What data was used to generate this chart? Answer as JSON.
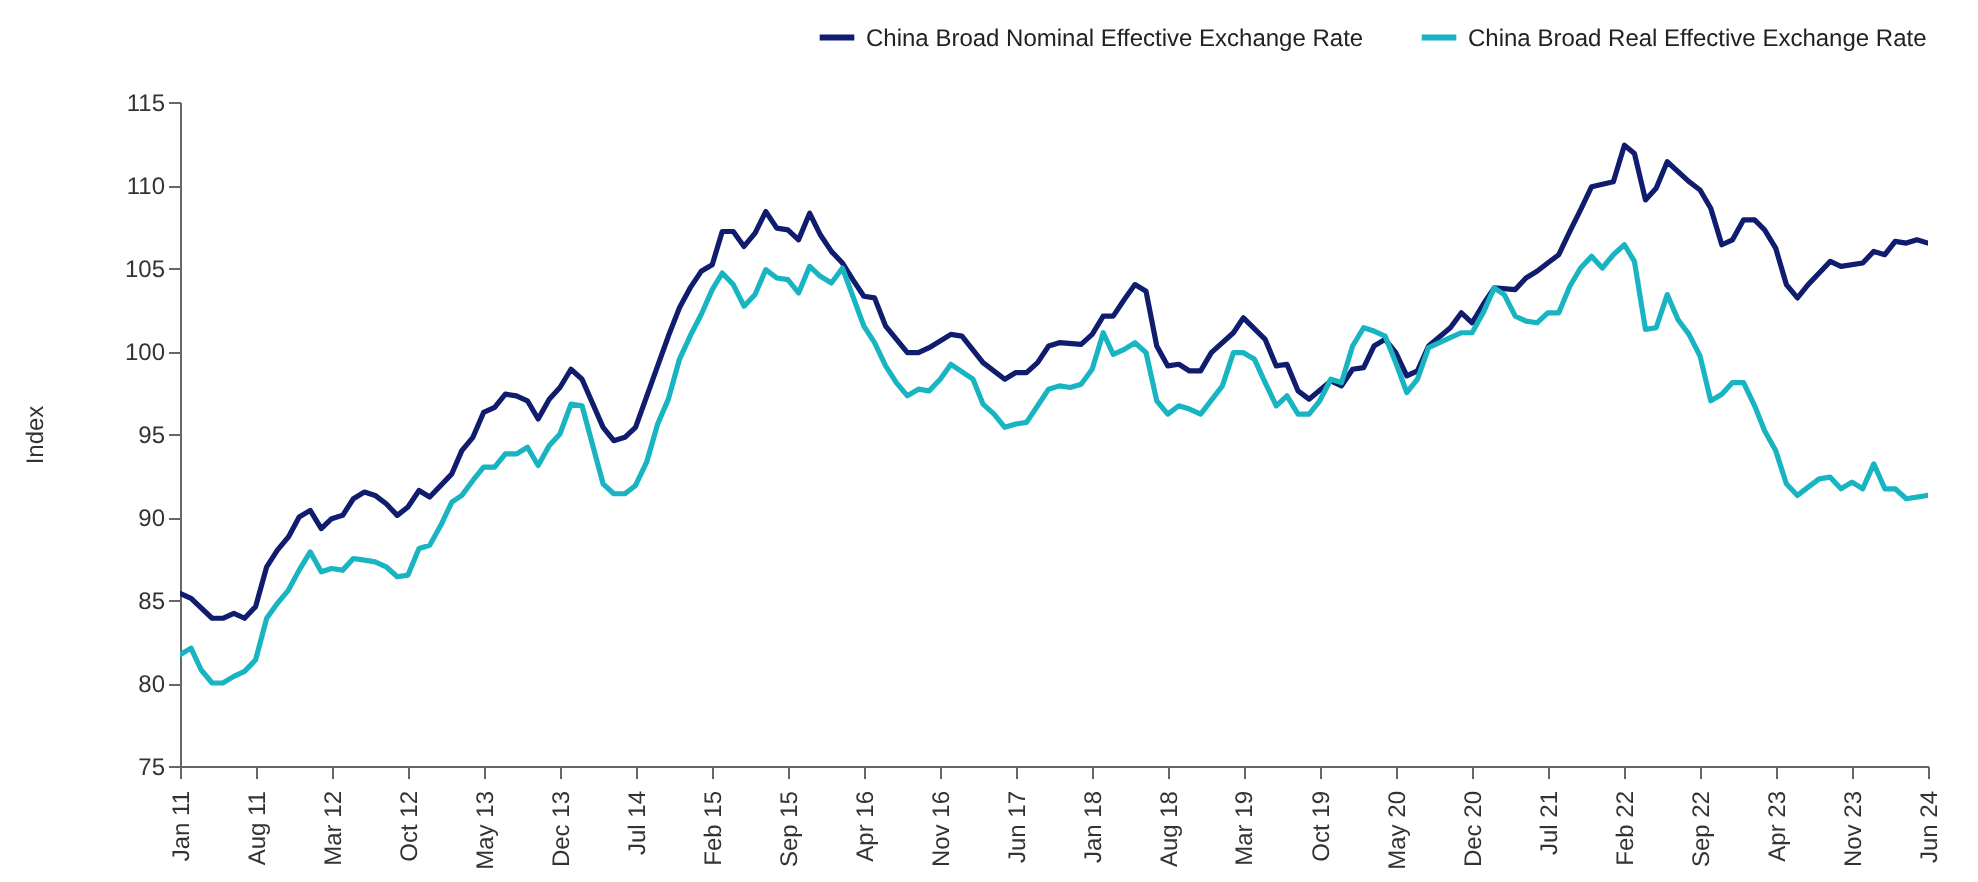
{
  "chart_data": {
    "type": "line",
    "ylabel": "Index",
    "ylim": [
      75,
      115
    ],
    "yticks": [
      75,
      80,
      85,
      90,
      95,
      100,
      105,
      110,
      115
    ],
    "xlim": [
      "2011-01",
      "2024-06"
    ],
    "xticks": [
      {
        "value": "2011-01",
        "label": "Jan 11"
      },
      {
        "value": "2011-08",
        "label": "Aug 11"
      },
      {
        "value": "2012-03",
        "label": "Mar 12"
      },
      {
        "value": "2012-10",
        "label": "Oct 12"
      },
      {
        "value": "2013-05",
        "label": "May 13"
      },
      {
        "value": "2013-12",
        "label": "Dec 13"
      },
      {
        "value": "2014-07",
        "label": "Jul 14"
      },
      {
        "value": "2015-02",
        "label": "Feb 15"
      },
      {
        "value": "2015-09",
        "label": "Sep 15"
      },
      {
        "value": "2016-04",
        "label": "Apr 16"
      },
      {
        "value": "2016-11",
        "label": "Nov 16"
      },
      {
        "value": "2017-06",
        "label": "Jun 17"
      },
      {
        "value": "2018-01",
        "label": "Jan 18"
      },
      {
        "value": "2018-08",
        "label": "Aug 18"
      },
      {
        "value": "2019-03",
        "label": "Mar 19"
      },
      {
        "value": "2019-10",
        "label": "Oct 19"
      },
      {
        "value": "2020-05",
        "label": "May 20"
      },
      {
        "value": "2020-12",
        "label": "Dec 20"
      },
      {
        "value": "2021-07",
        "label": "Jul 21"
      },
      {
        "value": "2022-02",
        "label": "Feb 22"
      },
      {
        "value": "2022-09",
        "label": "Sep 22"
      },
      {
        "value": "2023-04",
        "label": "Apr 23"
      },
      {
        "value": "2023-11",
        "label": "Nov 23"
      },
      {
        "value": "2024-06",
        "label": "Jun 24"
      }
    ],
    "grid": false,
    "legend": "top right",
    "marker": "none",
    "line_style": "solid",
    "series": [
      {
        "name": "China Broad Nominal Effective Exchange Rate",
        "color": "#101c6e",
        "x": [
          "2011-01",
          "2011-02",
          "2011-04",
          "2011-05",
          "2011-06",
          "2011-07",
          "2011-08",
          "2011-09",
          "2011-10",
          "2011-11",
          "2011-12",
          "2012-01",
          "2012-02",
          "2012-03",
          "2012-04",
          "2012-05",
          "2012-06",
          "2012-07",
          "2012-08",
          "2012-09",
          "2012-10",
          "2012-11",
          "2012-12",
          "2013-02",
          "2013-03",
          "2013-04",
          "2013-05",
          "2013-06",
          "2013-07",
          "2013-08",
          "2013-09",
          "2013-10",
          "2013-11",
          "2013-12",
          "2014-01",
          "2014-02",
          "2014-04",
          "2014-05",
          "2014-06",
          "2014-07",
          "2014-09",
          "2014-10",
          "2014-11",
          "2014-12",
          "2015-01",
          "2015-02",
          "2015-03",
          "2015-04",
          "2015-05",
          "2015-06",
          "2015-07",
          "2015-08",
          "2015-09",
          "2015-10",
          "2015-11",
          "2015-12",
          "2016-01",
          "2016-02",
          "2016-03",
          "2016-04",
          "2016-05",
          "2016-06",
          "2016-08",
          "2016-09",
          "2016-10",
          "2016-12",
          "2017-01",
          "2017-03",
          "2017-05",
          "2017-06",
          "2017-07",
          "2017-08",
          "2017-09",
          "2017-10",
          "2017-12",
          "2018-01",
          "2018-02",
          "2018-03",
          "2018-04",
          "2018-05",
          "2018-06",
          "2018-07",
          "2018-08",
          "2018-09",
          "2018-10",
          "2018-11",
          "2018-12",
          "2019-02",
          "2019-03",
          "2019-05",
          "2019-06",
          "2019-07",
          "2019-08",
          "2019-09",
          "2019-11",
          "2019-12",
          "2020-01",
          "2020-02",
          "2020-03",
          "2020-04",
          "2020-05",
          "2020-06",
          "2020-07",
          "2020-08",
          "2020-10",
          "2020-11",
          "2020-12",
          "2021-01",
          "2021-02",
          "2021-04",
          "2021-05",
          "2021-06",
          "2021-07",
          "2021-08",
          "2021-09",
          "2021-10",
          "2021-11",
          "2022-01",
          "2022-02",
          "2022-03",
          "2022-04",
          "2022-05",
          "2022-06",
          "2022-08",
          "2022-09",
          "2022-10",
          "2022-11",
          "2022-12",
          "2023-01",
          "2023-02",
          "2023-03",
          "2023-04",
          "2023-05",
          "2023-06",
          "2023-07",
          "2023-08",
          "2023-09",
          "2023-10",
          "2023-12",
          "2024-01",
          "2024-02",
          "2024-03",
          "2024-04",
          "2024-05",
          "2024-06"
        ],
        "values": [
          85.4,
          85.1,
          83.9,
          83.9,
          84.2,
          83.9,
          84.6,
          87.0,
          88.0,
          88.8,
          90.0,
          90.4,
          89.3,
          89.9,
          90.1,
          91.1,
          91.5,
          91.3,
          90.8,
          90.1,
          90.6,
          91.6,
          91.2,
          92.6,
          94.0,
          94.8,
          96.3,
          96.6,
          97.4,
          97.3,
          97.0,
          95.9,
          97.1,
          97.8,
          98.9,
          98.3,
          95.4,
          94.6,
          94.8,
          95.4,
          99.1,
          100.9,
          102.6,
          103.8,
          104.8,
          105.2,
          107.2,
          107.2,
          106.3,
          107.1,
          108.4,
          107.4,
          107.3,
          106.7,
          108.3,
          107.0,
          106.0,
          105.3,
          104.3,
          103.3,
          103.2,
          101.5,
          99.9,
          99.9,
          100.2,
          101.0,
          100.9,
          99.3,
          98.3,
          98.7,
          98.7,
          99.3,
          100.3,
          100.5,
          100.4,
          101.0,
          102.1,
          102.1,
          103.1,
          104.0,
          103.6,
          100.3,
          99.1,
          99.2,
          98.8,
          98.8,
          99.9,
          101.1,
          102.0,
          100.7,
          99.1,
          99.2,
          97.6,
          97.1,
          98.2,
          97.9,
          98.9,
          99.0,
          100.3,
          100.7,
          99.9,
          98.5,
          98.8,
          100.3,
          101.4,
          102.3,
          101.7,
          102.8,
          103.8,
          103.7,
          104.4,
          104.8,
          105.3,
          105.8,
          107.2,
          108.5,
          109.9,
          110.2,
          112.4,
          111.9,
          109.1,
          109.8,
          111.4,
          110.2,
          109.7,
          108.6,
          106.4,
          106.7,
          107.9,
          107.9,
          107.3,
          106.2,
          104.0,
          103.2,
          104.0,
          104.7,
          105.4,
          105.1,
          105.3,
          106.0,
          105.8,
          106.6,
          106.5,
          106.7,
          106.5
        ]
      },
      {
        "name": "China Broad Real Effective Exchange Rate",
        "color": "#19b4c2",
        "x": [
          "2011-01",
          "2011-02",
          "2011-03",
          "2011-04",
          "2011-05",
          "2011-06",
          "2011-07",
          "2011-08",
          "2011-09",
          "2011-10",
          "2011-11",
          "2011-12",
          "2012-01",
          "2012-02",
          "2012-03",
          "2012-04",
          "2012-05",
          "2012-06",
          "2012-07",
          "2012-08",
          "2012-09",
          "2012-10",
          "2012-11",
          "2012-12",
          "2013-01",
          "2013-02",
          "2013-03",
          "2013-04",
          "2013-05",
          "2013-06",
          "2013-07",
          "2013-08",
          "2013-09",
          "2013-10",
          "2013-11",
          "2013-12",
          "2014-01",
          "2014-02",
          "2014-04",
          "2014-05",
          "2014-06",
          "2014-07",
          "2014-08",
          "2014-09",
          "2014-10",
          "2014-11",
          "2014-12",
          "2015-01",
          "2015-02",
          "2015-03",
          "2015-04",
          "2015-05",
          "2015-06",
          "2015-07",
          "2015-08",
          "2015-09",
          "2015-10",
          "2015-11",
          "2015-12",
          "2016-01",
          "2016-02",
          "2016-03",
          "2016-04",
          "2016-05",
          "2016-06",
          "2016-07",
          "2016-08",
          "2016-09",
          "2016-10",
          "2016-11",
          "2016-12",
          "2017-02",
          "2017-03",
          "2017-04",
          "2017-05",
          "2017-06",
          "2017-07",
          "2017-08",
          "2017-09",
          "2017-10",
          "2017-11",
          "2017-12",
          "2018-01",
          "2018-02",
          "2018-03",
          "2018-04",
          "2018-05",
          "2018-06",
          "2018-07",
          "2018-08",
          "2018-09",
          "2018-10",
          "2018-11",
          "2019-01",
          "2019-02",
          "2019-03",
          "2019-04",
          "2019-05",
          "2019-06",
          "2019-07",
          "2019-08",
          "2019-09",
          "2019-10",
          "2019-11",
          "2019-12",
          "2020-01",
          "2020-02",
          "2020-03",
          "2020-04",
          "2020-05",
          "2020-06",
          "2020-07",
          "2020-08",
          "2020-10",
          "2020-11",
          "2020-12",
          "2021-01",
          "2021-02",
          "2021-03",
          "2021-04",
          "2021-05",
          "2021-06",
          "2021-07",
          "2021-08",
          "2021-09",
          "2021-10",
          "2021-11",
          "2021-12",
          "2022-01",
          "2022-02",
          "2022-03",
          "2022-04",
          "2022-05",
          "2022-06",
          "2022-07",
          "2022-08",
          "2022-09",
          "2022-10",
          "2022-11",
          "2022-12",
          "2023-01",
          "2023-02",
          "2023-03",
          "2023-04",
          "2023-05",
          "2023-06",
          "2023-07",
          "2023-08",
          "2023-09",
          "2023-10",
          "2023-11",
          "2023-12",
          "2024-01",
          "2024-02",
          "2024-03",
          "2024-04",
          "2024-06"
        ],
        "values": [
          81.7,
          82.1,
          80.8,
          80.0,
          80.0,
          80.4,
          80.7,
          81.4,
          83.9,
          84.8,
          85.6,
          86.8,
          87.9,
          86.7,
          86.9,
          86.8,
          87.5,
          87.4,
          87.3,
          87.0,
          86.4,
          86.5,
          88.1,
          88.3,
          89.5,
          90.9,
          91.3,
          92.2,
          93.0,
          93.0,
          93.8,
          93.8,
          94.2,
          93.1,
          94.3,
          95.0,
          96.8,
          96.7,
          92.0,
          91.4,
          91.4,
          91.9,
          93.3,
          95.6,
          97.1,
          99.5,
          100.9,
          102.2,
          103.7,
          104.7,
          104.0,
          102.7,
          103.4,
          104.9,
          104.4,
          104.3,
          103.5,
          105.1,
          104.5,
          104.1,
          105.0,
          103.3,
          101.5,
          100.5,
          99.1,
          98.1,
          97.3,
          97.7,
          97.6,
          98.3,
          99.2,
          98.3,
          96.8,
          96.2,
          95.4,
          95.6,
          95.7,
          96.7,
          97.7,
          97.9,
          97.8,
          98.0,
          98.9,
          101.1,
          99.8,
          100.1,
          100.5,
          99.9,
          97.0,
          96.2,
          96.7,
          96.5,
          96.2,
          97.9,
          99.9,
          99.9,
          99.5,
          98.1,
          96.7,
          97.3,
          96.2,
          96.2,
          97.0,
          98.3,
          98.1,
          100.3,
          101.4,
          101.2,
          100.9,
          99.3,
          97.5,
          98.3,
          100.2,
          100.8,
          101.1,
          101.1,
          102.3,
          103.8,
          103.4,
          102.1,
          101.8,
          101.7,
          102.3,
          102.3,
          103.9,
          105.0,
          105.7,
          105.0,
          105.8,
          106.4,
          105.4,
          101.3,
          101.4,
          103.4,
          101.9,
          101.0,
          99.7,
          97.0,
          97.4,
          98.1,
          98.1,
          96.7,
          95.2,
          94.0,
          92.0,
          91.3,
          91.8,
          92.3,
          92.4,
          91.7,
          92.1,
          91.7,
          93.2,
          91.7,
          91.7,
          91.1,
          91.3
        ]
      }
    ]
  }
}
